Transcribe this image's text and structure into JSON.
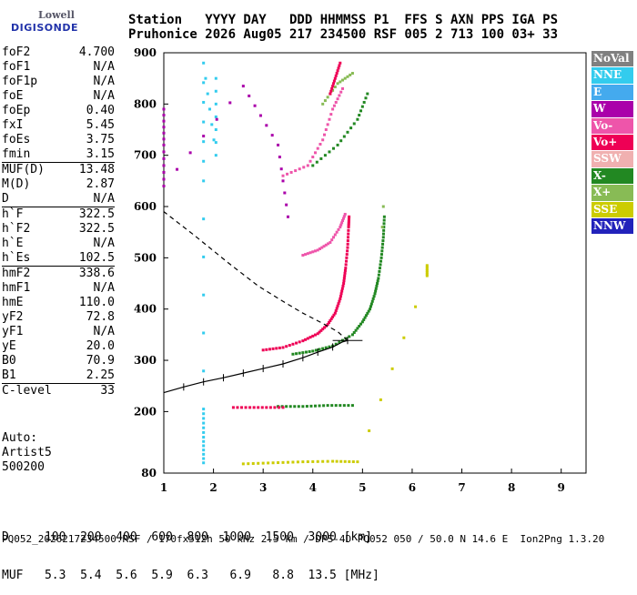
{
  "logo": {
    "line1": "Lowell",
    "line2": "DIGISONDE"
  },
  "header": {
    "line1": "Station   YYYY DAY   DDD HHMMSS P1  FFS S AXN PPS IGA PS",
    "line2": "Pruhonice 2026 Aug05 217 234500 RSF 005 2 713 100 03+ 33"
  },
  "params": [
    {
      "name": "foF2",
      "value": "4.700",
      "sep": false
    },
    {
      "name": "foF1",
      "value": "N/A",
      "sep": false
    },
    {
      "name": "foF1p",
      "value": "N/A",
      "sep": false
    },
    {
      "name": "foE",
      "value": "N/A",
      "sep": false
    },
    {
      "name": "foEp",
      "value": "0.40",
      "sep": false
    },
    {
      "name": "fxI",
      "value": "5.45",
      "sep": false
    },
    {
      "name": "foEs",
      "value": "3.75",
      "sep": false
    },
    {
      "name": "fmin",
      "value": "3.15",
      "sep": false
    },
    {
      "name": "MUF(D)",
      "value": "13.48",
      "sep": true
    },
    {
      "name": "M(D)",
      "value": "2.87",
      "sep": false
    },
    {
      "name": "D",
      "value": "N/A",
      "sep": false
    },
    {
      "name": "h`F",
      "value": "322.5",
      "sep": true
    },
    {
      "name": "h`F2",
      "value": "322.5",
      "sep": false
    },
    {
      "name": "h`E",
      "value": "N/A",
      "sep": false
    },
    {
      "name": "h`Es",
      "value": "102.5",
      "sep": false
    },
    {
      "name": "hmF2",
      "value": "338.6",
      "sep": true
    },
    {
      "name": "hmF1",
      "value": "N/A",
      "sep": false
    },
    {
      "name": "hmE",
      "value": "110.0",
      "sep": false
    },
    {
      "name": "yF2",
      "value": "72.8",
      "sep": false
    },
    {
      "name": "yF1",
      "value": "N/A",
      "sep": false
    },
    {
      "name": "yE",
      "value": "20.0",
      "sep": false
    },
    {
      "name": "B0",
      "value": "70.9",
      "sep": false
    },
    {
      "name": "B1",
      "value": "2.25",
      "sep": false
    },
    {
      "name": "C-level",
      "value": "33",
      "sep": true
    }
  ],
  "auto": {
    "line1": "Auto:",
    "line2": "Artist5",
    "line3": "500200"
  },
  "legend": [
    {
      "label": "NoVal",
      "color": "#808080"
    },
    {
      "label": "NNE",
      "color": "#33ccee"
    },
    {
      "label": "E",
      "color": "#44aaee"
    },
    {
      "label": "W",
      "color": "#aa00aa"
    },
    {
      "label": "Vo-",
      "color": "#ee55aa"
    },
    {
      "label": "Vo+",
      "color": "#ee0055"
    },
    {
      "label": "SSW",
      "color": "#f0b0b0"
    },
    {
      "label": "X-",
      "color": "#228822"
    },
    {
      "label": "X+",
      "color": "#88bb55"
    },
    {
      "label": "SSE",
      "color": "#cccc00"
    },
    {
      "label": "NNW",
      "color": "#2222bb"
    }
  ],
  "footer": {
    "d_label": "D",
    "d_values": [
      "100",
      "200",
      "400",
      "600",
      "800",
      "1000",
      "1500",
      "3000"
    ],
    "d_unit": "[km]",
    "muf_label": "MUF",
    "muf_values": [
      "5.3",
      "5.4",
      "5.6",
      "5.9",
      "6.3",
      "6.9",
      "8.8",
      "13.5"
    ],
    "muf_unit": "[MHz]",
    "info": "PQ052_2026217234500.RSF / 170fx512h 50 kHz 2.5 km / DPS-4D PQ052 050 / 50.0 N 14.6 E  Ion2Png 1.3.20"
  },
  "chart_data": {
    "type": "scatter",
    "xlim": [
      1,
      9.5
    ],
    "ylim": [
      80,
      900
    ],
    "xticks": [
      1,
      2,
      3,
      4,
      5,
      6,
      7,
      8,
      9
    ],
    "yticks": [
      80,
      200,
      300,
      400,
      500,
      600,
      700,
      800,
      900
    ],
    "grid": false,
    "profile": [
      [
        1.0,
        237
      ],
      [
        1.4,
        248
      ],
      [
        1.8,
        258
      ],
      [
        2.2,
        266
      ],
      [
        2.6,
        275
      ],
      [
        3.0,
        284
      ],
      [
        3.4,
        293
      ],
      [
        3.8,
        305
      ],
      [
        4.1,
        316
      ],
      [
        4.4,
        326
      ],
      [
        4.6,
        336
      ],
      [
        4.7,
        338.6
      ]
    ],
    "profile_upper": [
      [
        4.7,
        338.6
      ],
      [
        4.5,
        356
      ],
      [
        4.2,
        372
      ],
      [
        3.8,
        392
      ],
      [
        3.4,
        415
      ],
      [
        2.9,
        445
      ],
      [
        2.3,
        490
      ],
      [
        1.6,
        545
      ],
      [
        1.0,
        590
      ]
    ],
    "traces": [
      {
        "name": "Vo+",
        "color": "#ee0055",
        "points": [
          [
            3.0,
            320
          ],
          [
            3.4,
            325
          ],
          [
            3.8,
            338
          ],
          [
            4.1,
            352
          ],
          [
            4.3,
            370
          ],
          [
            4.45,
            392
          ],
          [
            4.55,
            420
          ],
          [
            4.62,
            450
          ],
          [
            4.66,
            480
          ],
          [
            4.7,
            520
          ],
          [
            4.72,
            560
          ],
          [
            4.73,
            580
          ]
        ]
      },
      {
        "name": "Vo-",
        "color": "#ee55aa",
        "points": [
          [
            3.8,
            505
          ],
          [
            4.1,
            515
          ],
          [
            4.35,
            530
          ],
          [
            4.55,
            560
          ],
          [
            4.65,
            585
          ]
        ]
      },
      {
        "name": "X-",
        "color": "#228822",
        "points": [
          [
            3.6,
            312
          ],
          [
            4.0,
            318
          ],
          [
            4.4,
            328
          ],
          [
            4.8,
            350
          ],
          [
            5.0,
            375
          ],
          [
            5.15,
            400
          ],
          [
            5.25,
            430
          ],
          [
            5.32,
            460
          ],
          [
            5.38,
            500
          ],
          [
            5.42,
            540
          ],
          [
            5.44,
            580
          ]
        ]
      },
      {
        "name": "X+",
        "color": "#88bb55",
        "points": [
          [
            5.4,
            560
          ],
          [
            5.42,
            600
          ]
        ]
      },
      {
        "name": "X-2",
        "color": "#228822",
        "points": [
          [
            3.3,
            210
          ],
          [
            3.8,
            210
          ],
          [
            4.3,
            212
          ],
          [
            4.8,
            212
          ]
        ]
      },
      {
        "name": "Vo+2",
        "color": "#ee0055",
        "points": [
          [
            2.4,
            208
          ],
          [
            2.9,
            208
          ],
          [
            3.4,
            208
          ]
        ]
      },
      {
        "name": "SSE",
        "color": "#cccc00",
        "points": [
          [
            2.6,
            98
          ],
          [
            3.2,
            100
          ],
          [
            3.8,
            102
          ],
          [
            4.4,
            103
          ],
          [
            4.9,
            102
          ],
          [
            6.3,
            465
          ],
          [
            6.3,
            485
          ]
        ]
      },
      {
        "name": "NNE",
        "color": "#33ccee",
        "points": [
          [
            1.8,
            100
          ],
          [
            1.8,
            150
          ],
          [
            1.8,
            205
          ],
          [
            1.8,
            650
          ],
          [
            1.8,
            880
          ],
          [
            2.05,
            700
          ],
          [
            2.05,
            850
          ]
        ]
      },
      {
        "name": "Vo-2",
        "color": "#ee55aa",
        "points": [
          [
            3.4,
            660
          ],
          [
            3.9,
            680
          ],
          [
            4.2,
            730
          ],
          [
            4.4,
            790
          ],
          [
            4.6,
            830
          ]
        ]
      },
      {
        "name": "X-3",
        "color": "#228822",
        "points": [
          [
            4.0,
            680
          ],
          [
            4.5,
            720
          ],
          [
            4.9,
            770
          ],
          [
            5.1,
            820
          ]
        ]
      },
      {
        "name": "X+2",
        "color": "#88bb55",
        "points": [
          [
            4.2,
            800
          ],
          [
            4.5,
            840
          ],
          [
            4.8,
            860
          ]
        ]
      },
      {
        "name": "Vo+3",
        "color": "#ee0055",
        "points": [
          [
            4.35,
            820
          ],
          [
            4.45,
            850
          ],
          [
            4.55,
            880
          ]
        ]
      },
      {
        "name": "W",
        "color": "#aa00aa",
        "points": [
          [
            1.0,
            790
          ],
          [
            1.0,
            720
          ],
          [
            1.0,
            640
          ],
          [
            2.6,
            835
          ],
          [
            3.3,
            720
          ],
          [
            3.5,
            580
          ]
        ]
      }
    ],
    "errorbars": [
      [
        1.4,
        248
      ],
      [
        1.8,
        258
      ],
      [
        2.2,
        266
      ],
      [
        2.6,
        275
      ],
      [
        3.0,
        284
      ],
      [
        3.4,
        293
      ],
      [
        3.8,
        305
      ],
      [
        4.1,
        316
      ],
      [
        4.4,
        326
      ],
      [
        4.7,
        338.6
      ]
    ]
  }
}
